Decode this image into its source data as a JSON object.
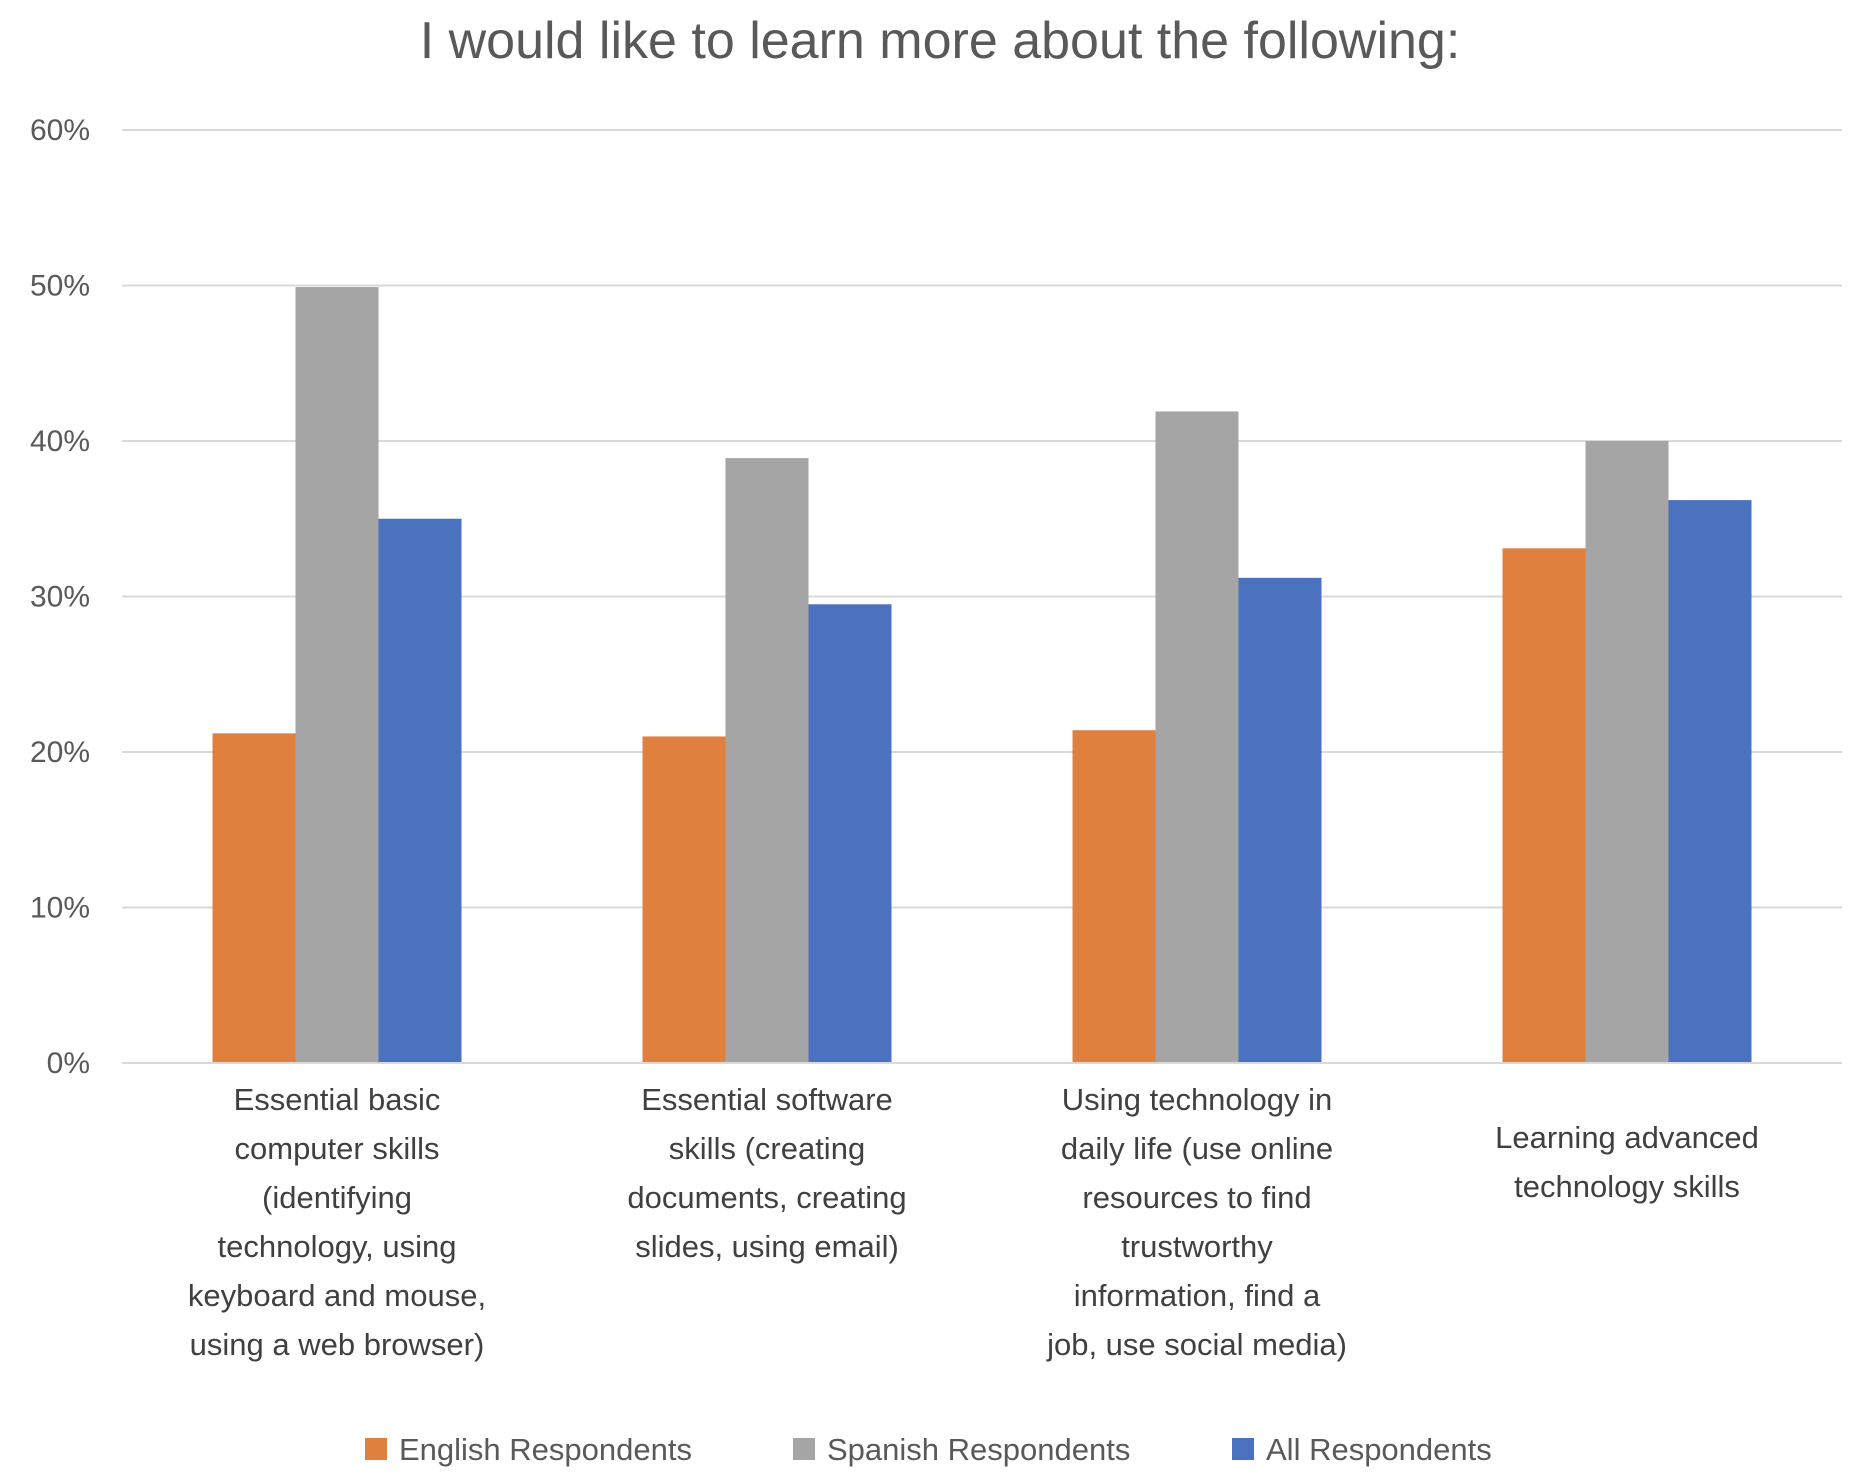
{
  "chart_data": {
    "type": "bar",
    "title": "I would like to learn more about the following:",
    "xlabel": "",
    "ylabel": "",
    "ylim": [
      0,
      0.6
    ],
    "yticks": [
      "0%",
      "10%",
      "20%",
      "30%",
      "40%",
      "50%",
      "60%"
    ],
    "grid": true,
    "legend_position": "bottom",
    "categories": [
      [
        "Essential basic",
        "computer skills",
        "(identifying",
        "technology, using",
        "keyboard and mouse,",
        "using a web browser)"
      ],
      [
        "Essential software",
        "skills (creating",
        "documents, creating",
        "slides, using email)"
      ],
      [
        "Using technology in",
        "daily life (use online",
        "resources to find",
        "trustworthy",
        "information, find a",
        "job, use social media)"
      ],
      [
        "Learning advanced",
        "technology skills"
      ]
    ],
    "series": [
      {
        "name": "English Respondents",
        "color": "#E0803F",
        "values": [
          0.212,
          0.21,
          0.214,
          0.331
        ]
      },
      {
        "name": "Spanish Respondents",
        "color": "#A5A5A5",
        "values": [
          0.499,
          0.389,
          0.419,
          0.4
        ]
      },
      {
        "name": "All Respondents",
        "color": "#4A72BE",
        "values": [
          0.35,
          0.295,
          0.312,
          0.362
        ]
      }
    ]
  }
}
